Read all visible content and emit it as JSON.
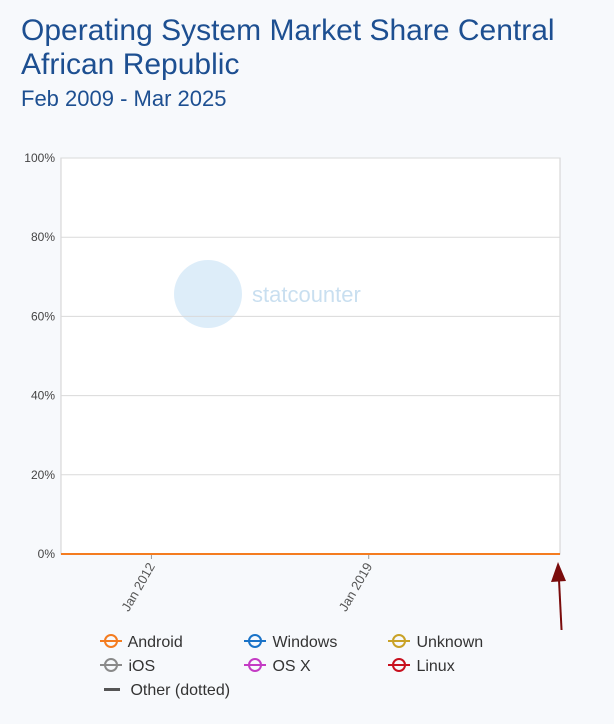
{
  "header": {
    "title": "Operating System Market Share Central African Republic",
    "subtitle": "Feb 2009 - Mar 2025"
  },
  "watermark": "statcounter",
  "colors": {
    "Android": "#f47c20",
    "Windows": "#1a73c8",
    "Unknown": "#c9a227",
    "iOS": "#8a8a8a",
    "OS X": "#c43bc4",
    "Linux": "#c8101e",
    "Other": "#555555",
    "arrow": "#7a0c0c"
  },
  "chart_data": {
    "type": "line",
    "x_start": "2009-02",
    "x_end": "2025-03",
    "xticks": [
      "Jan 2012",
      "Jan 2019"
    ],
    "ylim": [
      0,
      100
    ],
    "yticks": [
      "0%",
      "20%",
      "40%",
      "60%",
      "80%",
      "100%"
    ],
    "grid": true,
    "legend_position": "bottom",
    "series": [
      {
        "name": "Android",
        "dotted": false,
        "values": [
          0,
          0,
          0,
          0,
          0,
          0,
          0,
          0,
          0,
          0,
          0,
          0,
          0,
          0,
          0,
          0,
          0,
          0,
          0,
          0,
          0,
          0,
          0,
          0,
          0,
          0,
          0,
          0,
          0,
          0,
          0,
          0,
          0,
          0,
          0,
          0,
          0,
          0,
          0,
          0,
          0,
          0,
          0,
          0,
          0,
          0,
          0,
          0,
          0,
          0,
          0,
          0,
          0,
          0,
          0,
          0,
          0,
          0,
          0,
          0,
          0,
          0,
          0,
          0,
          0,
          0,
          0,
          0,
          0,
          0,
          0,
          0,
          0,
          0,
          0,
          0,
          0,
          0,
          0,
          0,
          0,
          0,
          0,
          0,
          0,
          0,
          0,
          0,
          0,
          0,
          0,
          0,
          0,
          0,
          0,
          0,
          0,
          0,
          0,
          0,
          0,
          0,
          0,
          0,
          0,
          0,
          0,
          0,
          0,
          0,
          0,
          0,
          0,
          0,
          0,
          0,
          0,
          0,
          0,
          0,
          0,
          0,
          0,
          0,
          0,
          0,
          0,
          0,
          0,
          0,
          0,
          0,
          0,
          0,
          0,
          0,
          0,
          0,
          0,
          0,
          0,
          0,
          0,
          0,
          0,
          0,
          0,
          0,
          0,
          0,
          0,
          0,
          0,
          0,
          0,
          0,
          0,
          0,
          0,
          0,
          0,
          0,
          0,
          0,
          0,
          0,
          0,
          0,
          0,
          0,
          0,
          0,
          0,
          0,
          0,
          0,
          0,
          0,
          0,
          0,
          0,
          0,
          0,
          0,
          0,
          0,
          0,
          0,
          0,
          0,
          0,
          0,
          0,
          0,
          0
        ]
      }
    ]
  },
  "legend": [
    {
      "name": "Android"
    },
    {
      "name": "Windows"
    },
    {
      "name": "Unknown"
    },
    {
      "name": "iOS"
    },
    {
      "name": "OS X"
    },
    {
      "name": "Linux"
    },
    {
      "name": "Other (dotted)"
    }
  ]
}
